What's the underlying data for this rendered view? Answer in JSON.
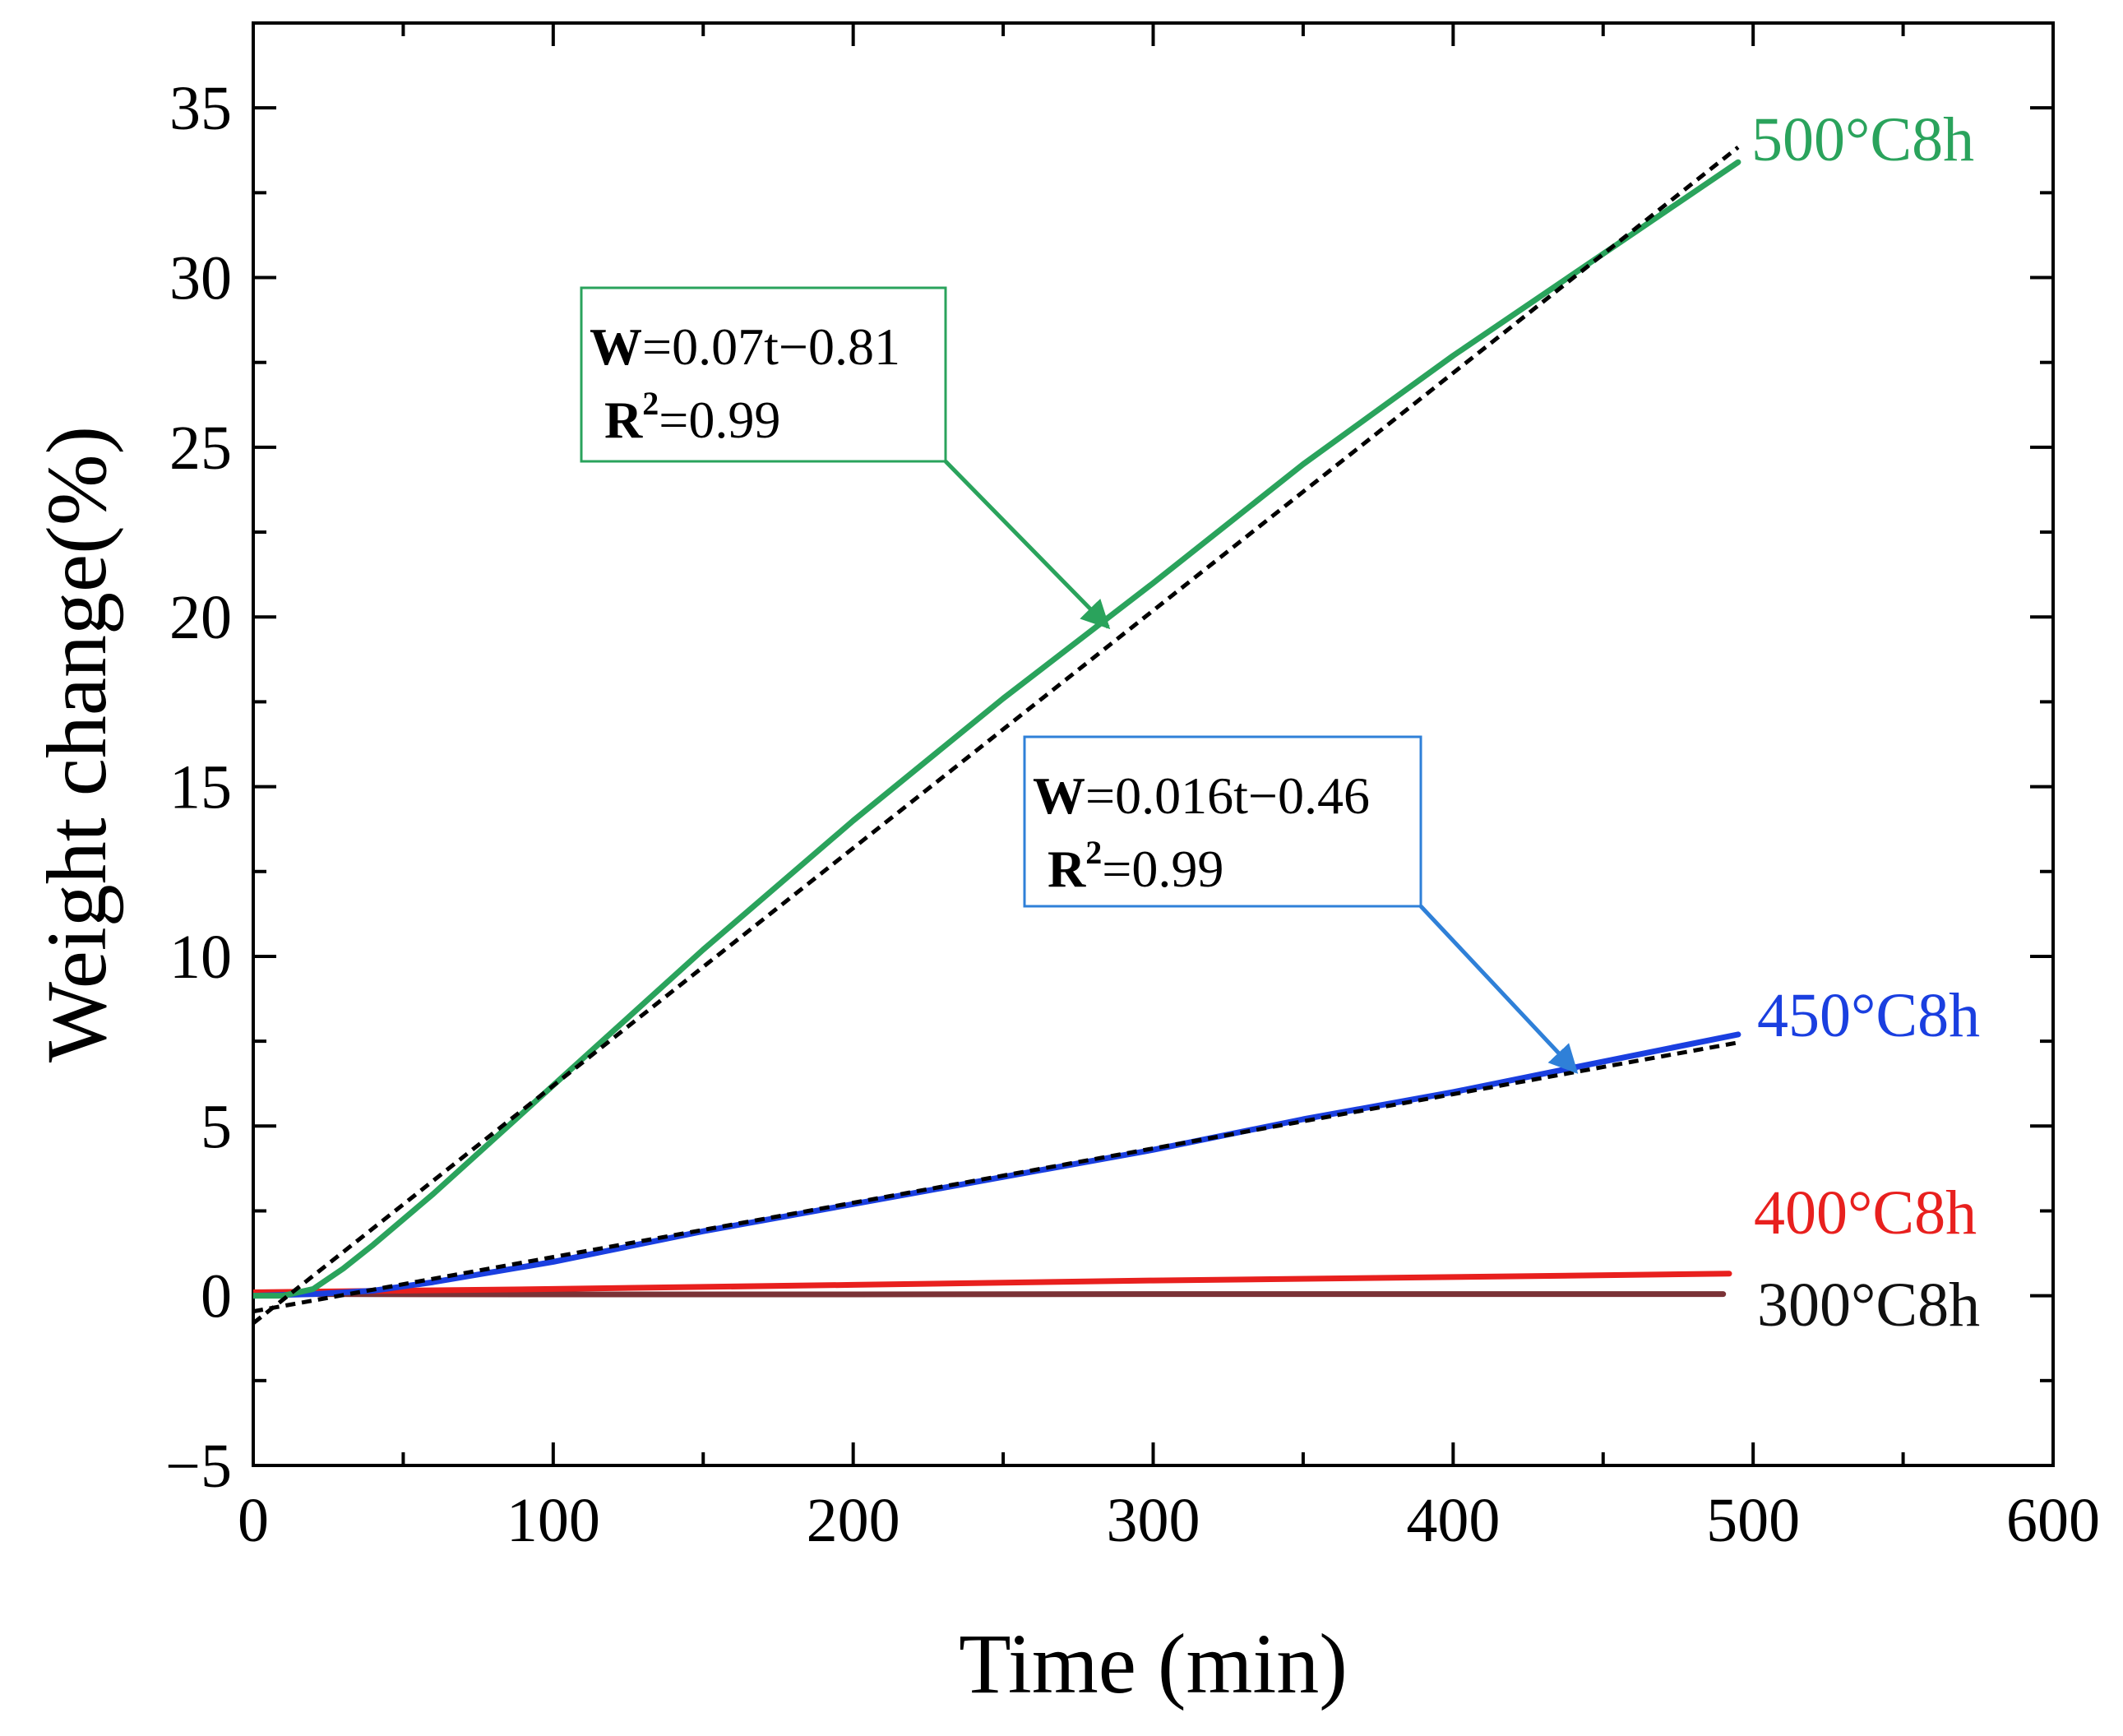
{
  "chart_data": {
    "type": "line",
    "title": "",
    "xlabel": "Time (min)",
    "ylabel": "Weight change(%)",
    "xlim": [
      0,
      600
    ],
    "ylim": [
      -5,
      37.5
    ],
    "x_ticks": [
      0,
      100,
      200,
      300,
      400,
      500,
      600
    ],
    "y_ticks": [
      -5,
      0,
      5,
      10,
      15,
      20,
      25,
      30,
      35
    ],
    "x_tick_labels": [
      "0",
      "100",
      "200",
      "300",
      "400",
      "500",
      "600"
    ],
    "y_tick_labels": [
      "−5",
      "0",
      "5",
      "10",
      "15",
      "20",
      "25",
      "30",
      "35"
    ],
    "grid": false,
    "series": [
      {
        "name": "500°C8h",
        "color": "#2aa35c",
        "x": [
          0,
          10,
          20,
          30,
          40,
          60,
          80,
          100,
          150,
          200,
          250,
          300,
          350,
          400,
          450,
          495
        ],
        "y": [
          0,
          0,
          0.2,
          0.8,
          1.5,
          3.0,
          4.6,
          6.2,
          10.2,
          14.0,
          17.6,
          21.0,
          24.5,
          27.7,
          30.7,
          33.4
        ]
      },
      {
        "name": "450°C8h",
        "color": "#1a3fe0",
        "x": [
          0,
          20,
          40,
          60,
          100,
          150,
          200,
          250,
          300,
          350,
          400,
          450,
          495
        ],
        "y": [
          0,
          0.05,
          0.15,
          0.4,
          1.0,
          1.9,
          2.7,
          3.5,
          4.3,
          5.2,
          6.0,
          6.9,
          7.7
        ]
      },
      {
        "name": "400°C8h",
        "color": "#e8201e",
        "x": [
          0,
          100,
          200,
          300,
          400,
          492
        ],
        "y": [
          0.1,
          0.2,
          0.32,
          0.45,
          0.55,
          0.65
        ]
      },
      {
        "name": "300°C8h",
        "color": "#7a3236",
        "x": [
          0,
          100,
          200,
          300,
          400,
          490
        ],
        "y": [
          0.05,
          0.04,
          0.04,
          0.05,
          0.05,
          0.05
        ]
      }
    ],
    "fits": [
      {
        "name": "fit-500",
        "series": "500°C8h",
        "slope": 0.07,
        "intercept": -0.81,
        "x_range": [
          0,
          495
        ],
        "equation_prefix": "W",
        "equation_rest": "=0.07t−0.81",
        "r2_prefix": "R",
        "r2_rest": "=0.99",
        "box_color": "#2aa35c",
        "arrow_target": [
          285,
          19.7
        ]
      },
      {
        "name": "fit-450",
        "series": "450°C8h",
        "slope": 0.016,
        "intercept": -0.46,
        "x_range": [
          0,
          495
        ],
        "equation_prefix": "W",
        "equation_rest": "=0.016t−0.46",
        "r2_prefix": "R",
        "r2_rest": "=0.99",
        "box_color": "#2f80d8",
        "arrow_target": [
          441,
          6.6
        ]
      }
    ],
    "series_labels": [
      {
        "text": "500°C8h",
        "color": "#2aa35c"
      },
      {
        "text": "450°C8h",
        "color": "#1a3fe0"
      },
      {
        "text": "400°C8h",
        "color": "#e8201e"
      },
      {
        "text": "300°C8h",
        "color": "#111111"
      }
    ],
    "superscript": "2"
  }
}
